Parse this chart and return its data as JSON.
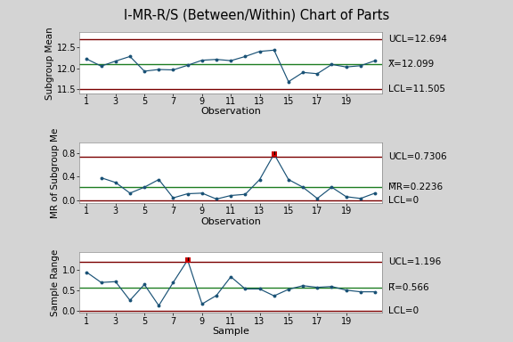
{
  "title": "I-MR-R/S (Between/Within) Chart of Parts",
  "bg_color": "#d4d4d4",
  "plot_bg_color": "#ffffff",
  "chart1": {
    "ylabel": "Subgroup Mean",
    "xlabel": "Observation",
    "x": [
      1,
      2,
      3,
      4,
      5,
      6,
      7,
      8,
      9,
      10,
      11,
      12,
      13,
      14,
      15,
      16,
      17,
      18,
      19,
      20,
      21
    ],
    "y": [
      12.22,
      12.05,
      12.17,
      12.28,
      11.93,
      11.97,
      11.96,
      12.07,
      12.19,
      12.21,
      12.18,
      12.28,
      12.4,
      12.43,
      11.68,
      11.9,
      11.87,
      12.09,
      12.03,
      12.06,
      12.18
    ],
    "ucl": 12.694,
    "cl": 12.099,
    "lcl": 11.505,
    "ucl_label": "UCL=12.694",
    "cl_label": "X̅=12.099",
    "lcl_label": "LCL=11.505",
    "out_of_control": [],
    "ylim": [
      11.4,
      12.85
    ],
    "yticks": [
      11.5,
      12.0,
      12.5
    ]
  },
  "chart2": {
    "ylabel": "MR of Subgroup Me",
    "xlabel": "Observation",
    "x": [
      2,
      3,
      4,
      5,
      6,
      7,
      8,
      9,
      10,
      11,
      12,
      13,
      14,
      15,
      16,
      17,
      18,
      19,
      20,
      21
    ],
    "y": [
      0.38,
      0.3,
      0.12,
      0.22,
      0.35,
      0.04,
      0.11,
      0.12,
      0.02,
      0.08,
      0.1,
      0.35,
      0.78,
      0.35,
      0.22,
      0.03,
      0.22,
      0.06,
      0.03,
      0.12
    ],
    "ucl": 0.7306,
    "cl": 0.2236,
    "lcl": 0,
    "ucl_label": "UCL=0.7306",
    "cl_label": "M̅R=0.2236",
    "lcl_label": "LCL=0",
    "out_of_control": [
      14
    ],
    "ylim": [
      -0.05,
      0.98
    ],
    "yticks": [
      0.0,
      0.4,
      0.8
    ]
  },
  "chart3": {
    "ylabel": "Sample Range",
    "xlabel": "Sample",
    "x": [
      1,
      2,
      3,
      4,
      5,
      6,
      7,
      8,
      9,
      10,
      11,
      12,
      13,
      14,
      15,
      16,
      17,
      18,
      19,
      20,
      21
    ],
    "y": [
      0.95,
      0.7,
      0.72,
      0.26,
      0.65,
      0.13,
      0.7,
      1.25,
      0.17,
      0.38,
      0.84,
      0.54,
      0.54,
      0.37,
      0.53,
      0.62,
      0.58,
      0.6,
      0.51,
      0.47,
      0.47
    ],
    "ucl": 1.196,
    "cl": 0.566,
    "lcl": 0,
    "ucl_label": "UCL=1.196",
    "cl_label": "R̅=0.566",
    "lcl_label": "LCL=0",
    "out_of_control": [
      8
    ],
    "ylim": [
      -0.05,
      1.45
    ],
    "yticks": [
      0.0,
      0.5,
      1.0
    ]
  },
  "line_color": "#1a5276",
  "ucl_color": "#7b0000",
  "cl_color": "#1e7d22",
  "lcl_color": "#7b0000",
  "out_color": "#cc0000",
  "tick_labels": [
    1,
    3,
    5,
    7,
    9,
    11,
    13,
    15,
    17,
    19
  ],
  "label_fontsize": 7.5,
  "tick_fontsize": 7,
  "title_fontsize": 10.5
}
